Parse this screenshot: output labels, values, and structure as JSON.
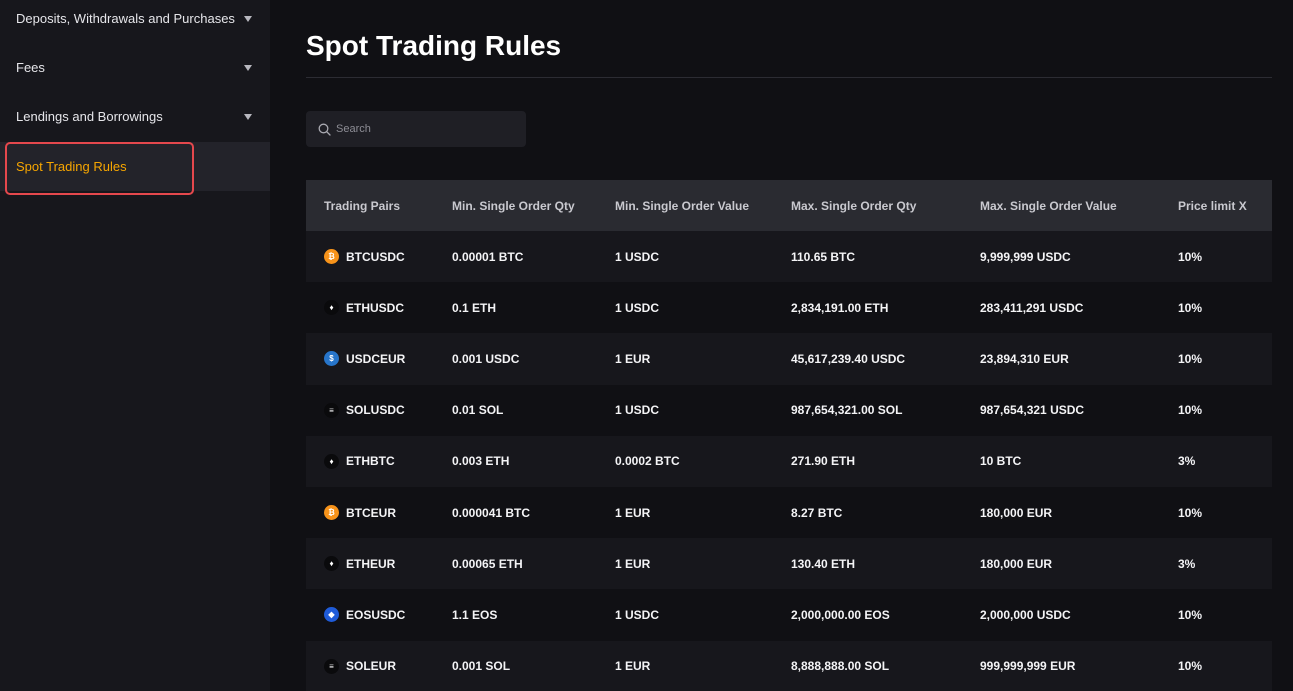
{
  "sidebar": {
    "items": [
      {
        "label": "Deposits, Withdrawals and Purchases"
      },
      {
        "label": "Fees"
      },
      {
        "label": "Lendings and Borrowings"
      },
      {
        "label": "Spot Trading Rules"
      }
    ]
  },
  "main": {
    "title": "Spot Trading Rules",
    "search_placeholder": "Search"
  },
  "colors": {
    "accent": "#f7a600",
    "highlight": "#e5484d",
    "background": "#101014"
  },
  "table": {
    "headers": [
      "Trading Pairs",
      "Min. Single Order Qty",
      "Min. Single Order Value",
      "Max. Single Order Qty",
      "Max. Single Order Value",
      "Price limit X"
    ],
    "rows": [
      {
        "icon": "btc-icon",
        "pair": "BTCUSDC",
        "min_qty": "0.00001 BTC",
        "min_value": "1 USDC",
        "max_qty": "110.65 BTC",
        "max_value": "9,999,999 USDC",
        "price_limit": "10%"
      },
      {
        "icon": "eth-icon",
        "pair": "ETHUSDC",
        "min_qty": "0.1 ETH",
        "min_value": "1 USDC",
        "max_qty": "2,834,191.00 ETH",
        "max_value": "283,411,291 USDC",
        "price_limit": "10%"
      },
      {
        "icon": "usdc-icon",
        "pair": "USDCEUR",
        "min_qty": "0.001 USDC",
        "min_value": "1 EUR",
        "max_qty": "45,617,239.40 USDC",
        "max_value": "23,894,310 EUR",
        "price_limit": "10%"
      },
      {
        "icon": "sol-icon",
        "pair": "SOLUSDC",
        "min_qty": "0.01 SOL",
        "min_value": "1 USDC",
        "max_qty": "987,654,321.00 SOL",
        "max_value": "987,654,321 USDC",
        "price_limit": "10%"
      },
      {
        "icon": "eth-icon",
        "pair": "ETHBTC",
        "min_qty": "0.003 ETH",
        "min_value": "0.0002 BTC",
        "max_qty": "271.90 ETH",
        "max_value": "10 BTC",
        "price_limit": "3%"
      },
      {
        "icon": "btc-icon",
        "pair": "BTCEUR",
        "min_qty": "0.000041 BTC",
        "min_value": "1 EUR",
        "max_qty": "8.27 BTC",
        "max_value": "180,000 EUR",
        "price_limit": "10%"
      },
      {
        "icon": "eth-icon",
        "pair": "ETHEUR",
        "min_qty": "0.00065 ETH",
        "min_value": "1 EUR",
        "max_qty": "130.40 ETH",
        "max_value": "180,000 EUR",
        "price_limit": "3%"
      },
      {
        "icon": "eos-icon",
        "pair": "EOSUSDC",
        "min_qty": "1.1 EOS",
        "min_value": "1 USDC",
        "max_qty": "2,000,000.00 EOS",
        "max_value": "2,000,000 USDC",
        "price_limit": "10%"
      },
      {
        "icon": "sol-icon",
        "pair": "SOLEUR",
        "min_qty": "0.001 SOL",
        "min_value": "1 EUR",
        "max_qty": "8,888,888.00 SOL",
        "max_value": "999,999,999 EUR",
        "price_limit": "10%"
      }
    ]
  }
}
